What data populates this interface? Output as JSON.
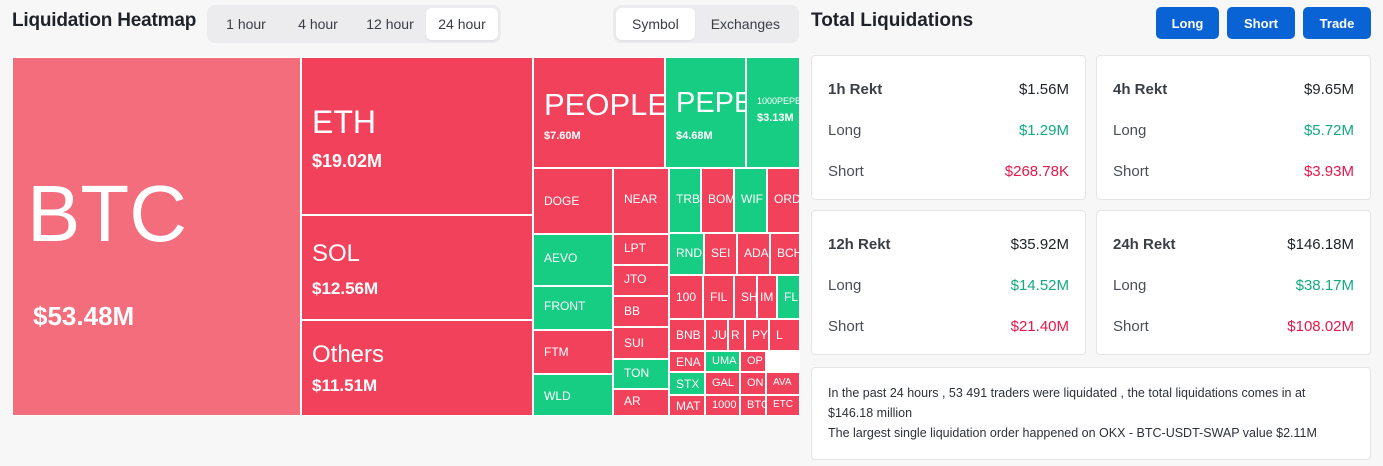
{
  "heatmap": {
    "title": "Liquidation Heatmap",
    "time_tabs": [
      "1 hour",
      "4 hour",
      "12 hour",
      "24 hour"
    ],
    "active_time_tab": "24 hour",
    "mode_tabs": [
      "Symbol",
      "Exchanges"
    ],
    "active_mode_tab": "Symbol",
    "colors": {
      "red": "#f2415b",
      "pink": "#f46d7d",
      "green": "#17cc83"
    },
    "tiles": [
      {
        "symbol": "BTC",
        "value": "$53.48M",
        "color": "pink"
      },
      {
        "symbol": "ETH",
        "value": "$19.02M",
        "color": "red"
      },
      {
        "symbol": "SOL",
        "value": "$12.56M",
        "color": "red"
      },
      {
        "symbol": "Others",
        "value": "$11.51M",
        "color": "red"
      },
      {
        "symbol": "PEOPLE",
        "value": "$7.60M",
        "color": "red"
      },
      {
        "symbol": "PEPE",
        "value": "$4.68M",
        "color": "green"
      },
      {
        "symbol": "1000PEPE",
        "value": "$3.13M",
        "color": "green"
      },
      {
        "symbol": "DOGE",
        "value": "",
        "color": "red"
      },
      {
        "symbol": "AEVO",
        "value": "",
        "color": "green"
      },
      {
        "symbol": "FRONT",
        "value": "",
        "color": "green"
      },
      {
        "symbol": "FTM",
        "value": "",
        "color": "red"
      },
      {
        "symbol": "WLD",
        "value": "",
        "color": "green"
      },
      {
        "symbol": "NEAR",
        "value": "",
        "color": "red"
      },
      {
        "symbol": "LPT",
        "value": "",
        "color": "red"
      },
      {
        "symbol": "JTO",
        "value": "",
        "color": "red"
      },
      {
        "symbol": "BB",
        "value": "",
        "color": "red"
      },
      {
        "symbol": "SUI",
        "value": "",
        "color": "red"
      },
      {
        "symbol": "TON",
        "value": "",
        "color": "green"
      },
      {
        "symbol": "AR",
        "value": "",
        "color": "red"
      },
      {
        "symbol": "TRB",
        "value": "",
        "color": "green"
      },
      {
        "symbol": "BOM",
        "value": "",
        "color": "red"
      },
      {
        "symbol": "WIF",
        "value": "",
        "color": "green"
      },
      {
        "symbol": "ORD",
        "value": "",
        "color": "red"
      },
      {
        "symbol": "RND",
        "value": "",
        "color": "green"
      },
      {
        "symbol": "SEI",
        "value": "",
        "color": "red"
      },
      {
        "symbol": "ADA",
        "value": "",
        "color": "red"
      },
      {
        "symbol": "BCH",
        "value": "",
        "color": "red"
      },
      {
        "symbol": "100",
        "value": "",
        "color": "red"
      },
      {
        "symbol": "FIL",
        "value": "",
        "color": "red"
      },
      {
        "symbol": "SH",
        "value": "",
        "color": "red"
      },
      {
        "symbol": "IM",
        "value": "",
        "color": "red"
      },
      {
        "symbol": "FL",
        "value": "",
        "color": "green"
      },
      {
        "symbol": "BNB",
        "value": "",
        "color": "red"
      },
      {
        "symbol": "JU",
        "value": "",
        "color": "red"
      },
      {
        "symbol": "R",
        "value": "",
        "color": "red"
      },
      {
        "symbol": "PY",
        "value": "",
        "color": "red"
      },
      {
        "symbol": "L",
        "value": "",
        "color": "red"
      },
      {
        "symbol": "ENA",
        "value": "",
        "color": "red"
      },
      {
        "symbol": "UMA",
        "value": "",
        "color": "green"
      },
      {
        "symbol": "OP",
        "value": "",
        "color": "red"
      },
      {
        "symbol": "STX",
        "value": "",
        "color": "green"
      },
      {
        "symbol": "GAL",
        "value": "",
        "color": "red"
      },
      {
        "symbol": "ON",
        "value": "",
        "color": "red"
      },
      {
        "symbol": "AVA",
        "value": "",
        "color": "red"
      },
      {
        "symbol": "MAT",
        "value": "",
        "color": "red"
      },
      {
        "symbol": "1000",
        "value": "",
        "color": "red"
      },
      {
        "symbol": "BTC",
        "value": "",
        "color": "red"
      },
      {
        "symbol": "ETC",
        "value": "",
        "color": "red"
      }
    ]
  },
  "total": {
    "title": "Total Liquidations",
    "buttons": {
      "long": "Long",
      "short": "Short",
      "trade": "Trade"
    },
    "cards": [
      {
        "title": "1h Rekt",
        "total": "$1.56M",
        "long_label": "Long",
        "long": "$1.29M",
        "short_label": "Short",
        "short": "$268.78K"
      },
      {
        "title": "4h Rekt",
        "total": "$9.65M",
        "long_label": "Long",
        "long": "$5.72M",
        "short_label": "Short",
        "short": "$3.93M"
      },
      {
        "title": "12h Rekt",
        "total": "$35.92M",
        "long_label": "Long",
        "long": "$14.52M",
        "short_label": "Short",
        "short": "$21.40M"
      },
      {
        "title": "24h Rekt",
        "total": "$146.18M",
        "long_label": "Long",
        "long": "$38.17M",
        "short_label": "Short",
        "short": "$108.02M"
      }
    ],
    "summary_line1": "In the past 24 hours , 53 491 traders were liquidated , the total liquidations comes in at $146.18 million",
    "summary_line2": "The largest single liquidation order happened on OKX - BTC-USDT-SWAP value $2.11M"
  }
}
